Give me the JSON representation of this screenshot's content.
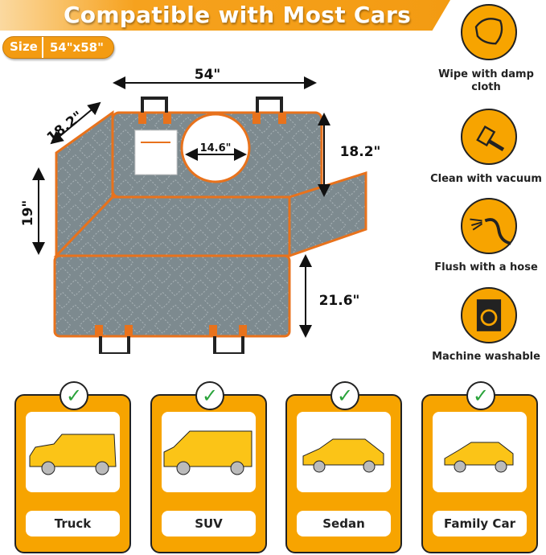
{
  "header": {
    "title": "Compatible with Most Cars"
  },
  "size_badge": {
    "label": "Size",
    "value": "54\"x58\""
  },
  "dimensions": {
    "width": "54\"",
    "flap_left": "18.2\"",
    "side": "19\"",
    "hole": "14.6\"",
    "back_height": "18.2\"",
    "bottom_height": "21.6\""
  },
  "care": [
    {
      "icon": "wipe-cloth-icon",
      "label": "Wipe with damp cloth"
    },
    {
      "icon": "vacuum-icon",
      "label": "Clean with vacuum"
    },
    {
      "icon": "hose-icon",
      "label": "Flush with a hose"
    },
    {
      "icon": "washing-machine-icon",
      "label": "Machine washable"
    }
  ],
  "vehicles": [
    {
      "label": "Truck"
    },
    {
      "label": "SUV"
    },
    {
      "label": "Sedan"
    },
    {
      "label": "Family Car"
    }
  ],
  "colors": {
    "accent": "#f7a400",
    "cover": "#7d8a8f",
    "trim": "#e8721c",
    "check": "#29a33a"
  }
}
